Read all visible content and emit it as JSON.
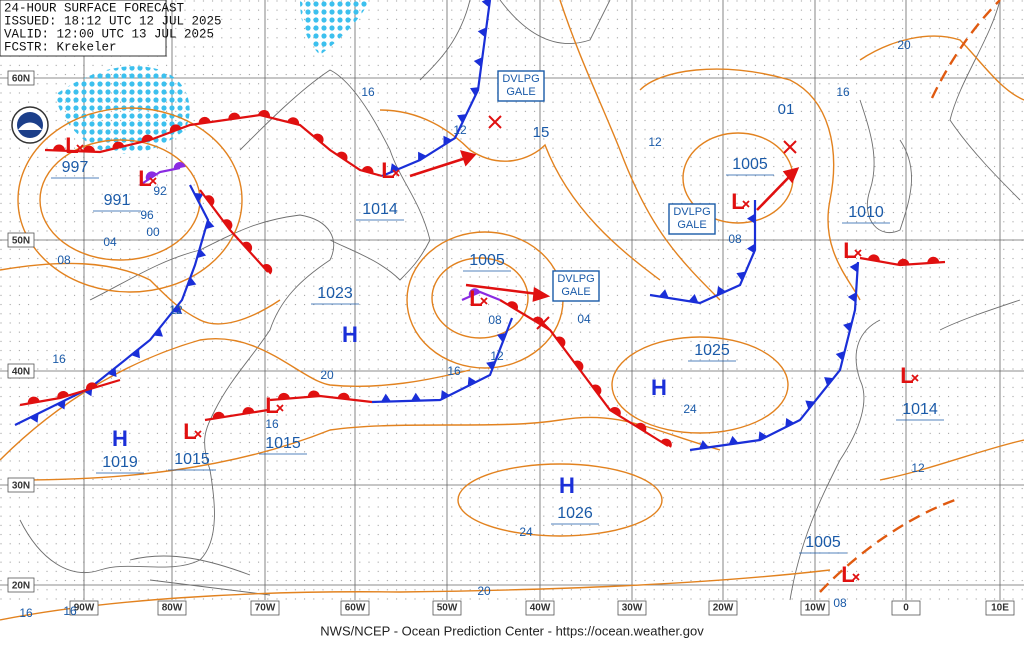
{
  "header": {
    "lines": [
      "24-HOUR SURFACE FORECAST",
      "ISSUED: 18:12 UTC 12 JUL 2025",
      "VALID: 12:00 UTC 13 JUL 2025",
      "FCSTR: Krekeler"
    ]
  },
  "footer": "NWS/NCEP - Ocean Prediction Center - https://ocean.weather.gov",
  "map": {
    "lat_labels": [
      "60N",
      "50N",
      "40N",
      "30N",
      "20N"
    ],
    "lon_labels": [
      "90W",
      "80W",
      "70W",
      "60W",
      "50W",
      "40W",
      "30W",
      "20W",
      "10W",
      "0",
      "10E"
    ],
    "centers": [
      {
        "symbol": "L",
        "pressure": "997"
      },
      {
        "symbol": "L",
        "pressure": "991"
      },
      {
        "symbol": "L",
        "pressure": "1014"
      },
      {
        "symbol": "L",
        "pressure": "1005"
      },
      {
        "symbol": "L",
        "pressure": "1005"
      },
      {
        "symbol": "L",
        "pressure": "1010"
      },
      {
        "symbol": "H",
        "pressure": "1023"
      },
      {
        "symbol": "H",
        "pressure": "1019"
      },
      {
        "symbol": "L",
        "pressure": "1015"
      },
      {
        "symbol": "L",
        "pressure": "1015"
      },
      {
        "symbol": "H",
        "pressure": "1025"
      },
      {
        "symbol": "H",
        "pressure": "1026"
      },
      {
        "symbol": "L",
        "pressure": "1014"
      },
      {
        "symbol": "L",
        "pressure": "1005"
      }
    ],
    "isobar_labels": [
      "16",
      "12",
      "15",
      "01",
      "12",
      "16",
      "20",
      "08",
      "04",
      "08",
      "12",
      "16",
      "20",
      "24",
      "16",
      "92",
      "96",
      "00",
      "04",
      "08",
      "12",
      "16",
      "12",
      "24",
      "20",
      "16",
      "16",
      "08"
    ],
    "warnings": [
      {
        "lines": [
          "DVLPG",
          "GALE"
        ]
      },
      {
        "lines": [
          "DVLPG",
          "GALE"
        ]
      },
      {
        "lines": [
          "DVLPG",
          "GALE"
        ]
      }
    ]
  }
}
